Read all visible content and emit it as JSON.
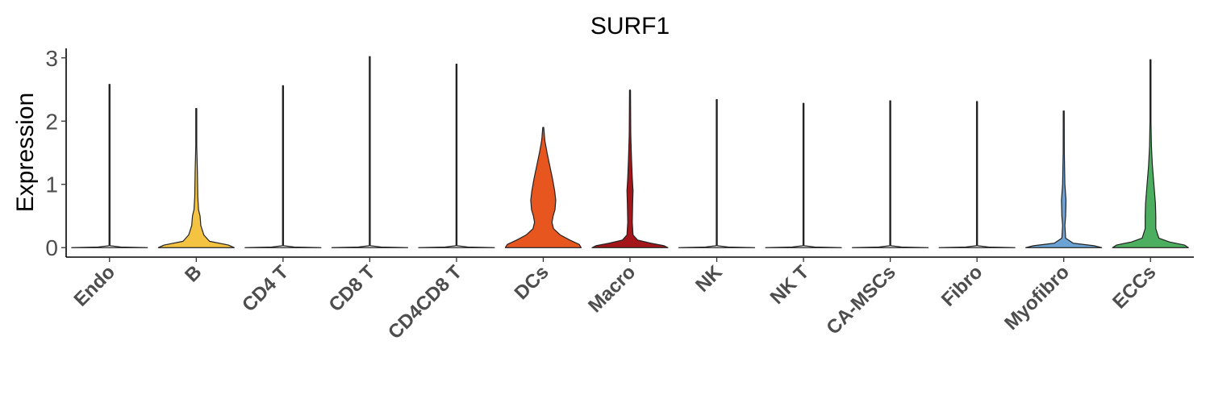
{
  "chart_data": {
    "type": "violin",
    "title": "SURF1",
    "xlabel": "",
    "ylabel": "Expression",
    "ylim": [
      -0.15,
      3.15
    ],
    "yticks": [
      0,
      1,
      2,
      3
    ],
    "grid": false,
    "legend": "none",
    "categories": [
      "Endo",
      "B",
      "CD4 T",
      "CD8 T",
      "CD4CD8 T",
      "DCs",
      "Macro",
      "NK",
      "NK T",
      "CA-MSCs",
      "Fibro",
      "Myofibro",
      "ECCs"
    ],
    "series": [
      {
        "category": "Endo",
        "color": "#ffffff",
        "max": 2.58,
        "shape": [
          [
            0,
            1.0
          ],
          [
            0.01,
            0.3
          ],
          [
            0.03,
            0.0
          ],
          [
            2.58,
            0.0
          ]
        ]
      },
      {
        "category": "B",
        "color": "#F4C342",
        "max": 2.2,
        "shape": [
          [
            0,
            1.0
          ],
          [
            0.04,
            0.85
          ],
          [
            0.1,
            0.35
          ],
          [
            0.2,
            0.2
          ],
          [
            0.35,
            0.12
          ],
          [
            0.5,
            0.1
          ],
          [
            0.6,
            0.06
          ],
          [
            0.8,
            0.04
          ],
          [
            1.2,
            0.03
          ],
          [
            1.6,
            0.012
          ],
          [
            2.2,
            0.0
          ]
        ]
      },
      {
        "category": "CD4 T",
        "color": "#ffffff",
        "max": 2.56,
        "shape": [
          [
            0,
            1.0
          ],
          [
            0.01,
            0.3
          ],
          [
            0.03,
            0.0
          ],
          [
            2.56,
            0.0
          ]
        ]
      },
      {
        "category": "CD8 T",
        "color": "#ffffff",
        "max": 3.02,
        "shape": [
          [
            0,
            1.0
          ],
          [
            0.01,
            0.3
          ],
          [
            0.03,
            0.0
          ],
          [
            3.02,
            0.0
          ]
        ]
      },
      {
        "category": "CD4CD8 T",
        "color": "#ffffff",
        "max": 2.9,
        "shape": [
          [
            0,
            1.0
          ],
          [
            0.01,
            0.3
          ],
          [
            0.03,
            0.0
          ],
          [
            2.9,
            0.0
          ]
        ]
      },
      {
        "category": "DCs",
        "color": "#E8561F",
        "max": 1.9,
        "shape": [
          [
            0,
            1.0
          ],
          [
            0.05,
            0.95
          ],
          [
            0.12,
            0.7
          ],
          [
            0.2,
            0.45
          ],
          [
            0.3,
            0.27
          ],
          [
            0.4,
            0.23
          ],
          [
            0.5,
            0.26
          ],
          [
            0.6,
            0.31
          ],
          [
            0.75,
            0.33
          ],
          [
            0.9,
            0.3
          ],
          [
            1.1,
            0.24
          ],
          [
            1.3,
            0.17
          ],
          [
            1.5,
            0.1
          ],
          [
            1.7,
            0.04
          ],
          [
            1.9,
            0.0
          ]
        ]
      },
      {
        "category": "Macro",
        "color": "#A5161A",
        "max": 2.49,
        "shape": [
          [
            0,
            1.0
          ],
          [
            0.03,
            0.9
          ],
          [
            0.07,
            0.55
          ],
          [
            0.12,
            0.2
          ],
          [
            0.2,
            0.08
          ],
          [
            0.4,
            0.06
          ],
          [
            0.7,
            0.07
          ],
          [
            0.9,
            0.08
          ],
          [
            1.1,
            0.06
          ],
          [
            1.4,
            0.04
          ],
          [
            1.8,
            0.02
          ],
          [
            2.49,
            0.0
          ]
        ]
      },
      {
        "category": "NK",
        "color": "#ffffff",
        "max": 2.34,
        "shape": [
          [
            0,
            1.0
          ],
          [
            0.01,
            0.3
          ],
          [
            0.03,
            0.0
          ],
          [
            2.34,
            0.0
          ]
        ]
      },
      {
        "category": "NK T",
        "color": "#ffffff",
        "max": 2.28,
        "shape": [
          [
            0,
            1.0
          ],
          [
            0.01,
            0.3
          ],
          [
            0.03,
            0.0
          ],
          [
            2.28,
            0.0
          ]
        ]
      },
      {
        "category": "CA-MSCs",
        "color": "#ffffff",
        "max": 2.32,
        "shape": [
          [
            0,
            1.0
          ],
          [
            0.01,
            0.3
          ],
          [
            0.03,
            0.0
          ],
          [
            2.32,
            0.0
          ]
        ]
      },
      {
        "category": "Fibro",
        "color": "#ffffff",
        "max": 2.31,
        "shape": [
          [
            0,
            1.0
          ],
          [
            0.01,
            0.3
          ],
          [
            0.03,
            0.0
          ],
          [
            2.31,
            0.0
          ]
        ]
      },
      {
        "category": "Myofibro",
        "color": "#6BA3D6",
        "max": 2.16,
        "shape": [
          [
            0,
            1.0
          ],
          [
            0.03,
            0.8
          ],
          [
            0.07,
            0.25
          ],
          [
            0.15,
            0.05
          ],
          [
            0.35,
            0.03
          ],
          [
            0.5,
            0.05
          ],
          [
            0.75,
            0.06
          ],
          [
            1.0,
            0.03
          ],
          [
            1.5,
            0.015
          ],
          [
            2.16,
            0.0
          ]
        ]
      },
      {
        "category": "ECCs",
        "color": "#4CAF5F",
        "max": 2.97,
        "shape": [
          [
            0,
            1.0
          ],
          [
            0.04,
            0.9
          ],
          [
            0.09,
            0.5
          ],
          [
            0.15,
            0.22
          ],
          [
            0.3,
            0.14
          ],
          [
            0.5,
            0.14
          ],
          [
            0.7,
            0.13
          ],
          [
            1.0,
            0.09
          ],
          [
            1.3,
            0.05
          ],
          [
            1.6,
            0.025
          ],
          [
            2.0,
            0.01
          ],
          [
            2.97,
            0.0
          ]
        ]
      }
    ]
  }
}
